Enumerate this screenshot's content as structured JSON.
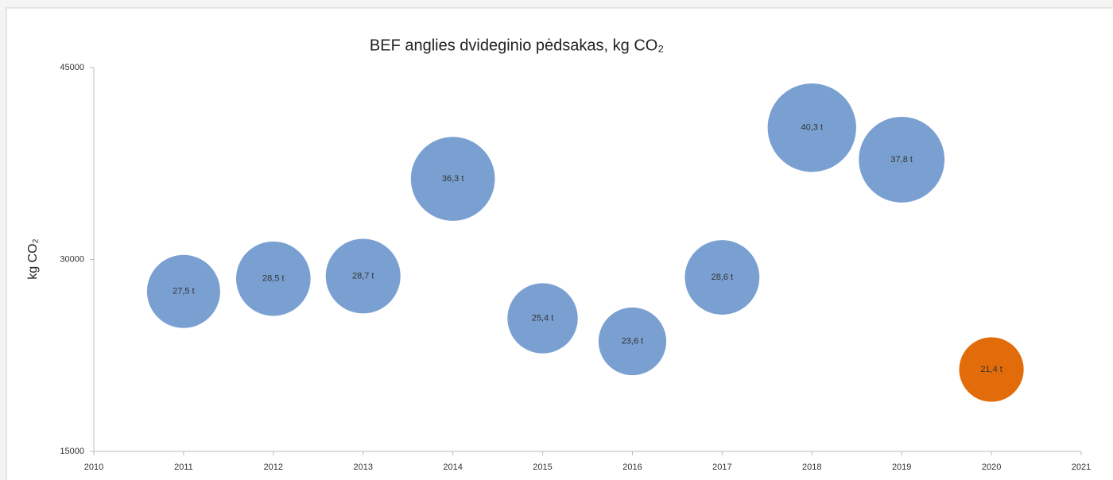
{
  "chart_data": {
    "type": "bubble",
    "title": "BEF anglies dvideginio pėdsakas, kg CO₂",
    "ylabel": "kg CO₂",
    "xlim": [
      2010,
      2021
    ],
    "xticks": [
      2010,
      2011,
      2012,
      2013,
      2014,
      2015,
      2016,
      2017,
      2018,
      2019,
      2020,
      2021
    ],
    "ylim": [
      15000,
      45000
    ],
    "yticks": [
      15000,
      30000,
      45000
    ],
    "grid": false,
    "series": [
      {
        "color": "#7aa0d2",
        "x": [
          2011,
          2012,
          2013,
          2014,
          2015,
          2016,
          2017,
          2018,
          2019
        ],
        "values": [
          27500,
          28500,
          28700,
          36300,
          25400,
          23600,
          28600,
          40300,
          37800
        ],
        "sizes": [
          27.5,
          28.5,
          28.7,
          36.3,
          25.4,
          23.6,
          28.6,
          40.3,
          37.8
        ],
        "value_labels": [
          "27,5 t",
          "28,5 t",
          "28,7 t",
          "36,3 t",
          "25,4 t",
          "23,6 t",
          "28,6 t",
          "40,3 t",
          "37,8 t"
        ]
      },
      {
        "color": "#e36c0a",
        "x": [
          2020
        ],
        "values": [
          21400
        ],
        "sizes": [
          21.4
        ],
        "value_labels": [
          "21,4 t"
        ]
      }
    ]
  }
}
